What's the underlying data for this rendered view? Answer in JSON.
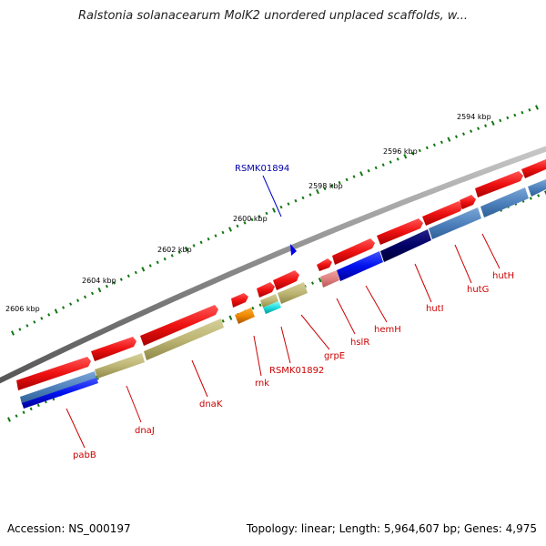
{
  "title": "Ralstonia solanacearum MolK2 unordered unplaced scaffolds, w...",
  "accession": "Accession: NS_000197",
  "topology": "Topology: linear; Length: 5,964,607 bp; Genes: 4,975",
  "scale_labels": [
    "2606 kbp",
    "2604 kbp",
    "2602 kbp",
    "2600 kbp",
    "2598 kbp",
    "2596 kbp",
    "2594 kbp"
  ],
  "special_feature": "RSMK01894",
  "gene_labels": [
    "pabB",
    "dnaJ",
    "dnaK",
    "rnk",
    "RSMK01892",
    "grpE",
    "hslR",
    "hemH",
    "hutI",
    "hutG",
    "hutH"
  ],
  "colors": {
    "gene_red": "#ee1111",
    "backbone": "#888888",
    "scale_dot": "#117711",
    "label_red": "#cc0000",
    "feature_blue": "#0000cc"
  }
}
